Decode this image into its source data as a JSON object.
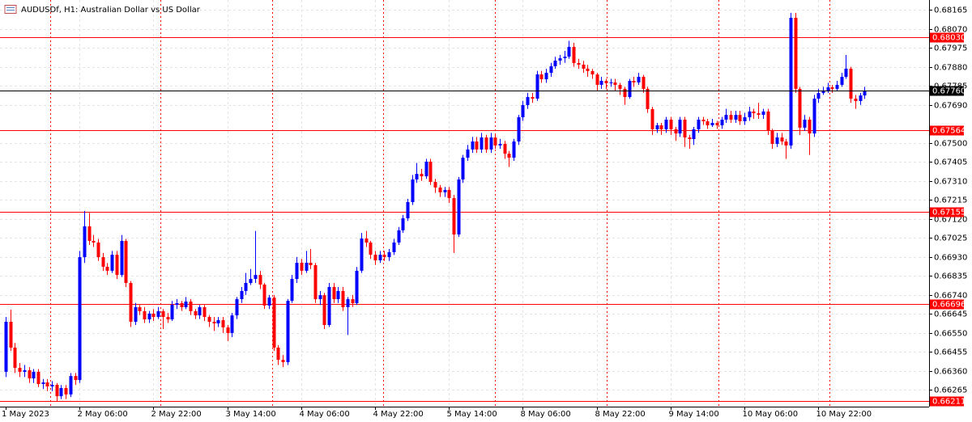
{
  "chart_data": {
    "type": "candlestick",
    "title": "AUDUSDf, H1:  Australian Dollar vs US Dollar",
    "categories": [
      "1 May 2023",
      null,
      null,
      null,
      null,
      null,
      null,
      null,
      null,
      null,
      null,
      null,
      null,
      null,
      null,
      null,
      "2 May 06:00",
      null,
      null,
      null,
      null,
      null,
      null,
      null,
      null,
      null,
      null,
      null,
      null,
      null,
      null,
      null,
      "2 May 22:00",
      null,
      null,
      null,
      null,
      null,
      null,
      null,
      null,
      null,
      null,
      null,
      null,
      null,
      null,
      null,
      "3 May 14:00",
      null,
      null,
      null,
      null,
      null,
      null,
      null,
      null,
      null,
      null,
      null,
      null,
      null,
      null,
      null,
      "4 May 06:00",
      null,
      null,
      null,
      null,
      null,
      null,
      null,
      null,
      null,
      null,
      null,
      null,
      null,
      null,
      null,
      "4 May 22:00",
      null,
      null,
      null,
      null,
      null,
      null,
      null,
      null,
      null,
      null,
      null,
      null,
      null,
      null,
      null,
      "5 May 14:00",
      null,
      null,
      null,
      null,
      null,
      null,
      null,
      null,
      null,
      null,
      null,
      null,
      null,
      null,
      null,
      "8 May 06:00",
      null,
      null,
      null,
      null,
      null,
      null,
      null,
      null,
      null,
      null,
      null,
      null,
      null,
      null,
      null,
      "8 May 22:00",
      null,
      null,
      null,
      null,
      null,
      null,
      null,
      null,
      null,
      null,
      null,
      null,
      null,
      null,
      null,
      "9 May 14:00",
      null,
      null,
      null,
      null,
      null,
      null,
      null,
      null,
      null,
      null,
      null,
      null,
      null,
      null,
      null,
      "10 May 06:00",
      null,
      null,
      null,
      null,
      null,
      null,
      null,
      null,
      null,
      null,
      null,
      null,
      null,
      null,
      null,
      "10 May 22:00",
      null,
      null,
      null,
      null,
      null,
      null,
      null,
      null,
      null,
      null
    ],
    "open": [
      0.66356,
      0.66606,
      0.66477,
      0.66376,
      0.66356,
      0.66364,
      0.66323,
      0.66356,
      0.66295,
      0.66303,
      0.66283,
      0.66291,
      0.66234,
      0.66275,
      0.66243,
      0.66335,
      0.66315,
      0.66929,
      0.67083,
      0.6701,
      0.67002,
      0.66929,
      0.66881,
      0.66861,
      0.66941,
      0.6684,
      0.6701,
      0.668,
      0.66606,
      0.66679,
      0.66659,
      0.66618,
      0.66647,
      0.6663,
      0.66659,
      0.6663,
      0.66618,
      0.66691,
      0.66699,
      0.66679,
      0.66707,
      0.66659,
      0.66638,
      0.66679,
      0.6663,
      0.66606,
      0.66598,
      0.66614,
      0.66578,
      0.6655,
      0.66638,
      0.66719,
      0.6676,
      0.668,
      0.6682,
      0.6684,
      0.66792,
      0.66687,
      0.66727,
      0.66477,
      0.66416,
      0.66404,
      0.66711,
      0.6682,
      0.66901,
      0.66861,
      0.66901,
      0.66889,
      0.66719,
      0.66739,
      0.6659,
      0.6678,
      0.66719,
      0.6676,
      0.66679,
      0.66719,
      0.66699,
      0.66861,
      0.67022,
      0.67002,
      0.66941,
      0.66913,
      0.66941,
      0.66929,
      0.66954,
      0.67002,
      0.67063,
      0.67123,
      0.67204,
      0.67317,
      0.67345,
      0.67333,
      0.67406,
      0.67305,
      0.67277,
      0.67253,
      0.67265,
      0.67224,
      0.67042,
      0.67317,
      0.67426,
      0.67467,
      0.67507,
      0.67467,
      0.67527,
      0.67467,
      0.67527,
      0.67487,
      0.67495,
      0.67446,
      0.67426,
      0.67507,
      0.67628,
      0.67689,
      0.67729,
      0.67721,
      0.67842,
      0.67818,
      0.6785,
      0.67883,
      0.67911,
      0.67923,
      0.67931,
      0.6798,
      0.67899,
      0.67891,
      0.67871,
      0.67859,
      0.67842,
      0.6779,
      0.6781,
      0.67798,
      0.67802,
      0.6779,
      0.6777,
      0.67729,
      0.6781,
      0.67802,
      0.6783,
      0.6777,
      0.67669,
      0.67568,
      0.67588,
      0.67568,
      0.67616,
      0.67568,
      0.67547,
      0.67616,
      0.67527,
      0.67519,
      0.67568,
      0.67616,
      0.67608,
      0.67588,
      0.676,
      0.67588,
      0.67616,
      0.6764,
      0.67616,
      0.6764,
      0.67608,
      0.67628,
      0.67657,
      0.67648,
      0.6764,
      0.67657,
      0.6756,
      0.67495,
      0.67527,
      0.67507,
      0.67487,
      0.68125,
      0.6777,
      0.67576,
      0.67616,
      0.67547,
      0.67721,
      0.67749,
      0.67762,
      0.67778,
      0.6777,
      0.6779,
      0.6783,
      0.67871,
      0.67721,
      0.67709,
      0.67737
    ],
    "high": [
      0.6663,
      0.66667,
      0.665,
      0.664,
      0.6639,
      0.6638,
      0.6637,
      0.6637,
      0.6632,
      0.6632,
      0.6631,
      0.663,
      0.6629,
      0.6629,
      0.6635,
      0.6635,
      0.6696,
      0.6716,
      0.6715,
      0.6704,
      0.6702,
      0.6695,
      0.669,
      0.6696,
      0.6696,
      0.6704,
      0.6702,
      0.6681,
      0.667,
      0.6669,
      0.6668,
      0.6666,
      0.6667,
      0.6668,
      0.6667,
      0.6665,
      0.6671,
      0.6672,
      0.6671,
      0.6673,
      0.6672,
      0.6667,
      0.6669,
      0.6669,
      0.6664,
      0.6663,
      0.6663,
      0.6663,
      0.6659,
      0.6665,
      0.6673,
      0.6678,
      0.6685,
      0.6687,
      0.6706,
      0.6686,
      0.668,
      0.6674,
      0.6674,
      0.6649,
      0.6644,
      0.6672,
      0.6684,
      0.6693,
      0.6692,
      0.6696,
      0.6697,
      0.669,
      0.6676,
      0.6675,
      0.668,
      0.668,
      0.6678,
      0.6678,
      0.6673,
      0.6674,
      0.6688,
      0.6705,
      0.6706,
      0.6701,
      0.6696,
      0.6696,
      0.6696,
      0.6697,
      0.6702,
      0.6708,
      0.6714,
      0.6722,
      0.6734,
      0.674,
      0.6737,
      0.6742,
      0.6742,
      0.6732,
      0.6729,
      0.6728,
      0.6728,
      0.6724,
      0.6733,
      0.6744,
      0.6749,
      0.6753,
      0.6753,
      0.6755,
      0.6754,
      0.6755,
      0.6754,
      0.6752,
      0.6751,
      0.6746,
      0.6752,
      0.6764,
      0.6771,
      0.6775,
      0.6775,
      0.6786,
      0.6786,
      0.6787,
      0.679,
      0.6793,
      0.6794,
      0.6796,
      0.6801,
      0.68,
      0.6792,
      0.6791,
      0.6789,
      0.6787,
      0.6785,
      0.6783,
      0.6782,
      0.6782,
      0.6782,
      0.678,
      0.6778,
      0.6782,
      0.6783,
      0.6785,
      0.6784,
      0.6778,
      0.6768,
      0.676,
      0.676,
      0.6763,
      0.6763,
      0.6758,
      0.6763,
      0.6763,
      0.6754,
      0.6758,
      0.6763,
      0.6763,
      0.6762,
      0.6762,
      0.6761,
      0.6763,
      0.6767,
      0.6766,
      0.6766,
      0.6766,
      0.6765,
      0.6768,
      0.6767,
      0.677,
      0.6767,
      0.6767,
      0.6757,
      0.6755,
      0.6755,
      0.6752,
      0.6815,
      0.6815,
      0.6778,
      0.6764,
      0.6763,
      0.6774,
      0.6777,
      0.6778,
      0.678,
      0.6779,
      0.6781,
      0.6785,
      0.6794,
      0.6788,
      0.6774,
      0.6775,
      0.6778
    ],
    "low": [
      0.6633,
      0.6646,
      0.6635,
      0.6633,
      0.6633,
      0.663,
      0.663,
      0.6628,
      0.6627,
      0.6626,
      0.6626,
      0.6621,
      0.6622,
      0.6622,
      0.6623,
      0.6629,
      0.663,
      0.669,
      0.6699,
      0.6698,
      0.6691,
      0.6686,
      0.6684,
      0.6685,
      0.6682,
      0.6683,
      0.6678,
      0.6658,
      0.6659,
      0.6664,
      0.666,
      0.666,
      0.6661,
      0.6662,
      0.6657,
      0.666,
      0.6661,
      0.6667,
      0.6666,
      0.6667,
      0.6664,
      0.6662,
      0.6662,
      0.6661,
      0.6658,
      0.6656,
      0.6658,
      0.6655,
      0.6651,
      0.6653,
      0.6662,
      0.667,
      0.6674,
      0.6679,
      0.668,
      0.6677,
      0.6667,
      0.6667,
      0.6646,
      0.6639,
      0.6638,
      0.6639,
      0.667,
      0.668,
      0.6684,
      0.6685,
      0.6687,
      0.667,
      0.6669,
      0.6657,
      0.6658,
      0.667,
      0.667,
      0.6666,
      0.6654,
      0.6668,
      0.6669,
      0.6685,
      0.6698,
      0.6692,
      0.6689,
      0.669,
      0.6691,
      0.6691,
      0.6694,
      0.6699,
      0.6705,
      0.6711,
      0.6719,
      0.673,
      0.6731,
      0.6732,
      0.6729,
      0.6725,
      0.6723,
      0.6723,
      0.672,
      0.6695,
      0.6703,
      0.673,
      0.6741,
      0.6745,
      0.6745,
      0.6745,
      0.6745,
      0.6745,
      0.6747,
      0.6747,
      0.6742,
      0.6738,
      0.6741,
      0.6749,
      0.6761,
      0.6767,
      0.677,
      0.6771,
      0.678,
      0.678,
      0.6783,
      0.6787,
      0.6789,
      0.679,
      0.6792,
      0.6788,
      0.6787,
      0.6785,
      0.6783,
      0.6782,
      0.6776,
      0.6777,
      0.6777,
      0.6778,
      0.6776,
      0.6774,
      0.6769,
      0.6772,
      0.6778,
      0.6779,
      0.6775,
      0.6765,
      0.6754,
      0.6755,
      0.6754,
      0.6755,
      0.6754,
      0.6751,
      0.6753,
      0.6748,
      0.6747,
      0.6749,
      0.6755,
      0.6759,
      0.6757,
      0.6758,
      0.6757,
      0.6757,
      0.676,
      0.676,
      0.676,
      0.6759,
      0.6759,
      0.6761,
      0.6762,
      0.6762,
      0.6762,
      0.6754,
      0.6747,
      0.6748,
      0.6749,
      0.6742,
      0.6747,
      0.6775,
      0.6754,
      0.6756,
      0.6744,
      0.6753,
      0.677,
      0.6774,
      0.6775,
      0.6775,
      0.6776,
      0.6778,
      0.6782,
      0.677,
      0.6767,
      0.6769,
      0.6772
    ],
    "close": [
      0.66606,
      0.66477,
      0.66376,
      0.66356,
      0.66364,
      0.66323,
      0.66356,
      0.66295,
      0.66303,
      0.66283,
      0.66291,
      0.66234,
      0.66275,
      0.66243,
      0.66335,
      0.66315,
      0.66929,
      0.67083,
      0.6701,
      0.67002,
      0.66929,
      0.66881,
      0.66861,
      0.66941,
      0.6684,
      0.6701,
      0.668,
      0.66606,
      0.66679,
      0.66659,
      0.66618,
      0.66647,
      0.6663,
      0.66659,
      0.6663,
      0.66618,
      0.66691,
      0.66699,
      0.66679,
      0.66707,
      0.66659,
      0.66638,
      0.66679,
      0.6663,
      0.66606,
      0.66598,
      0.66614,
      0.66578,
      0.6655,
      0.66638,
      0.66719,
      0.6676,
      0.668,
      0.6682,
      0.6684,
      0.66792,
      0.66687,
      0.66727,
      0.66477,
      0.66416,
      0.66404,
      0.66711,
      0.6682,
      0.66901,
      0.66861,
      0.66901,
      0.66889,
      0.66719,
      0.66739,
      0.6659,
      0.6678,
      0.66719,
      0.6676,
      0.66679,
      0.66719,
      0.66699,
      0.66861,
      0.67022,
      0.67002,
      0.66941,
      0.66913,
      0.66941,
      0.66929,
      0.66954,
      0.67002,
      0.67063,
      0.67123,
      0.67204,
      0.67317,
      0.67345,
      0.67333,
      0.67406,
      0.67305,
      0.67277,
      0.67253,
      0.67265,
      0.67224,
      0.67042,
      0.67317,
      0.67426,
      0.67467,
      0.67507,
      0.67467,
      0.67527,
      0.67467,
      0.67527,
      0.67487,
      0.67495,
      0.67446,
      0.67426,
      0.67507,
      0.67628,
      0.67689,
      0.67729,
      0.67721,
      0.67842,
      0.67818,
      0.6785,
      0.67883,
      0.67911,
      0.67923,
      0.67931,
      0.6798,
      0.67899,
      0.67891,
      0.67871,
      0.67859,
      0.67842,
      0.6779,
      0.6781,
      0.67798,
      0.67802,
      0.6779,
      0.6777,
      0.67729,
      0.6781,
      0.67802,
      0.6783,
      0.6777,
      0.67669,
      0.67568,
      0.67588,
      0.67568,
      0.67616,
      0.67568,
      0.67547,
      0.67616,
      0.67527,
      0.67519,
      0.67568,
      0.67616,
      0.67608,
      0.67588,
      0.676,
      0.67588,
      0.67616,
      0.6764,
      0.67616,
      0.6764,
      0.67608,
      0.67628,
      0.67657,
      0.67648,
      0.6764,
      0.67657,
      0.6756,
      0.67495,
      0.67527,
      0.67507,
      0.67487,
      0.68125,
      0.6777,
      0.67576,
      0.67616,
      0.67547,
      0.67721,
      0.67749,
      0.67762,
      0.67778,
      0.6777,
      0.6779,
      0.6783,
      0.67871,
      0.67721,
      0.67709,
      0.67737,
      0.6776
    ],
    "up_color": "#0000ff",
    "down_color": "#ff0000",
    "ylim": [
      0.66182,
      0.68214
    ],
    "yticks": [
      0.68165,
      {
        "value": 0.6807,
        "label": "0.68070"
      },
      0.67975,
      {
        "value": 0.6788,
        "label": "0.67880"
      },
      0.67785,
      {
        "value": 0.6769,
        "label": "0.67690"
      },
      {
        "value": 0.675,
        "label": "0.67500"
      },
      0.67405,
      {
        "value": 0.6731,
        "label": "0.67310"
      },
      0.67215,
      {
        "value": 0.6712,
        "label": "0.67120"
      },
      0.67025,
      {
        "value": 0.6693,
        "label": "0.66930"
      },
      0.66835,
      {
        "value": 0.6674,
        "label": "0.66740"
      },
      0.66645,
      {
        "value": 0.6655,
        "label": "0.66550"
      },
      0.66455,
      {
        "value": 0.6636,
        "label": "0.66360"
      },
      0.66265
    ],
    "grid": true,
    "levels": [
      {
        "value": 0.6803,
        "label": "0.68030"
      },
      0.67564,
      0.67155,
      0.66696,
      0.66211
    ],
    "level_color": "#ff0000",
    "current_price": {
      "value": 0.6776,
      "label": "0.67760"
    }
  }
}
